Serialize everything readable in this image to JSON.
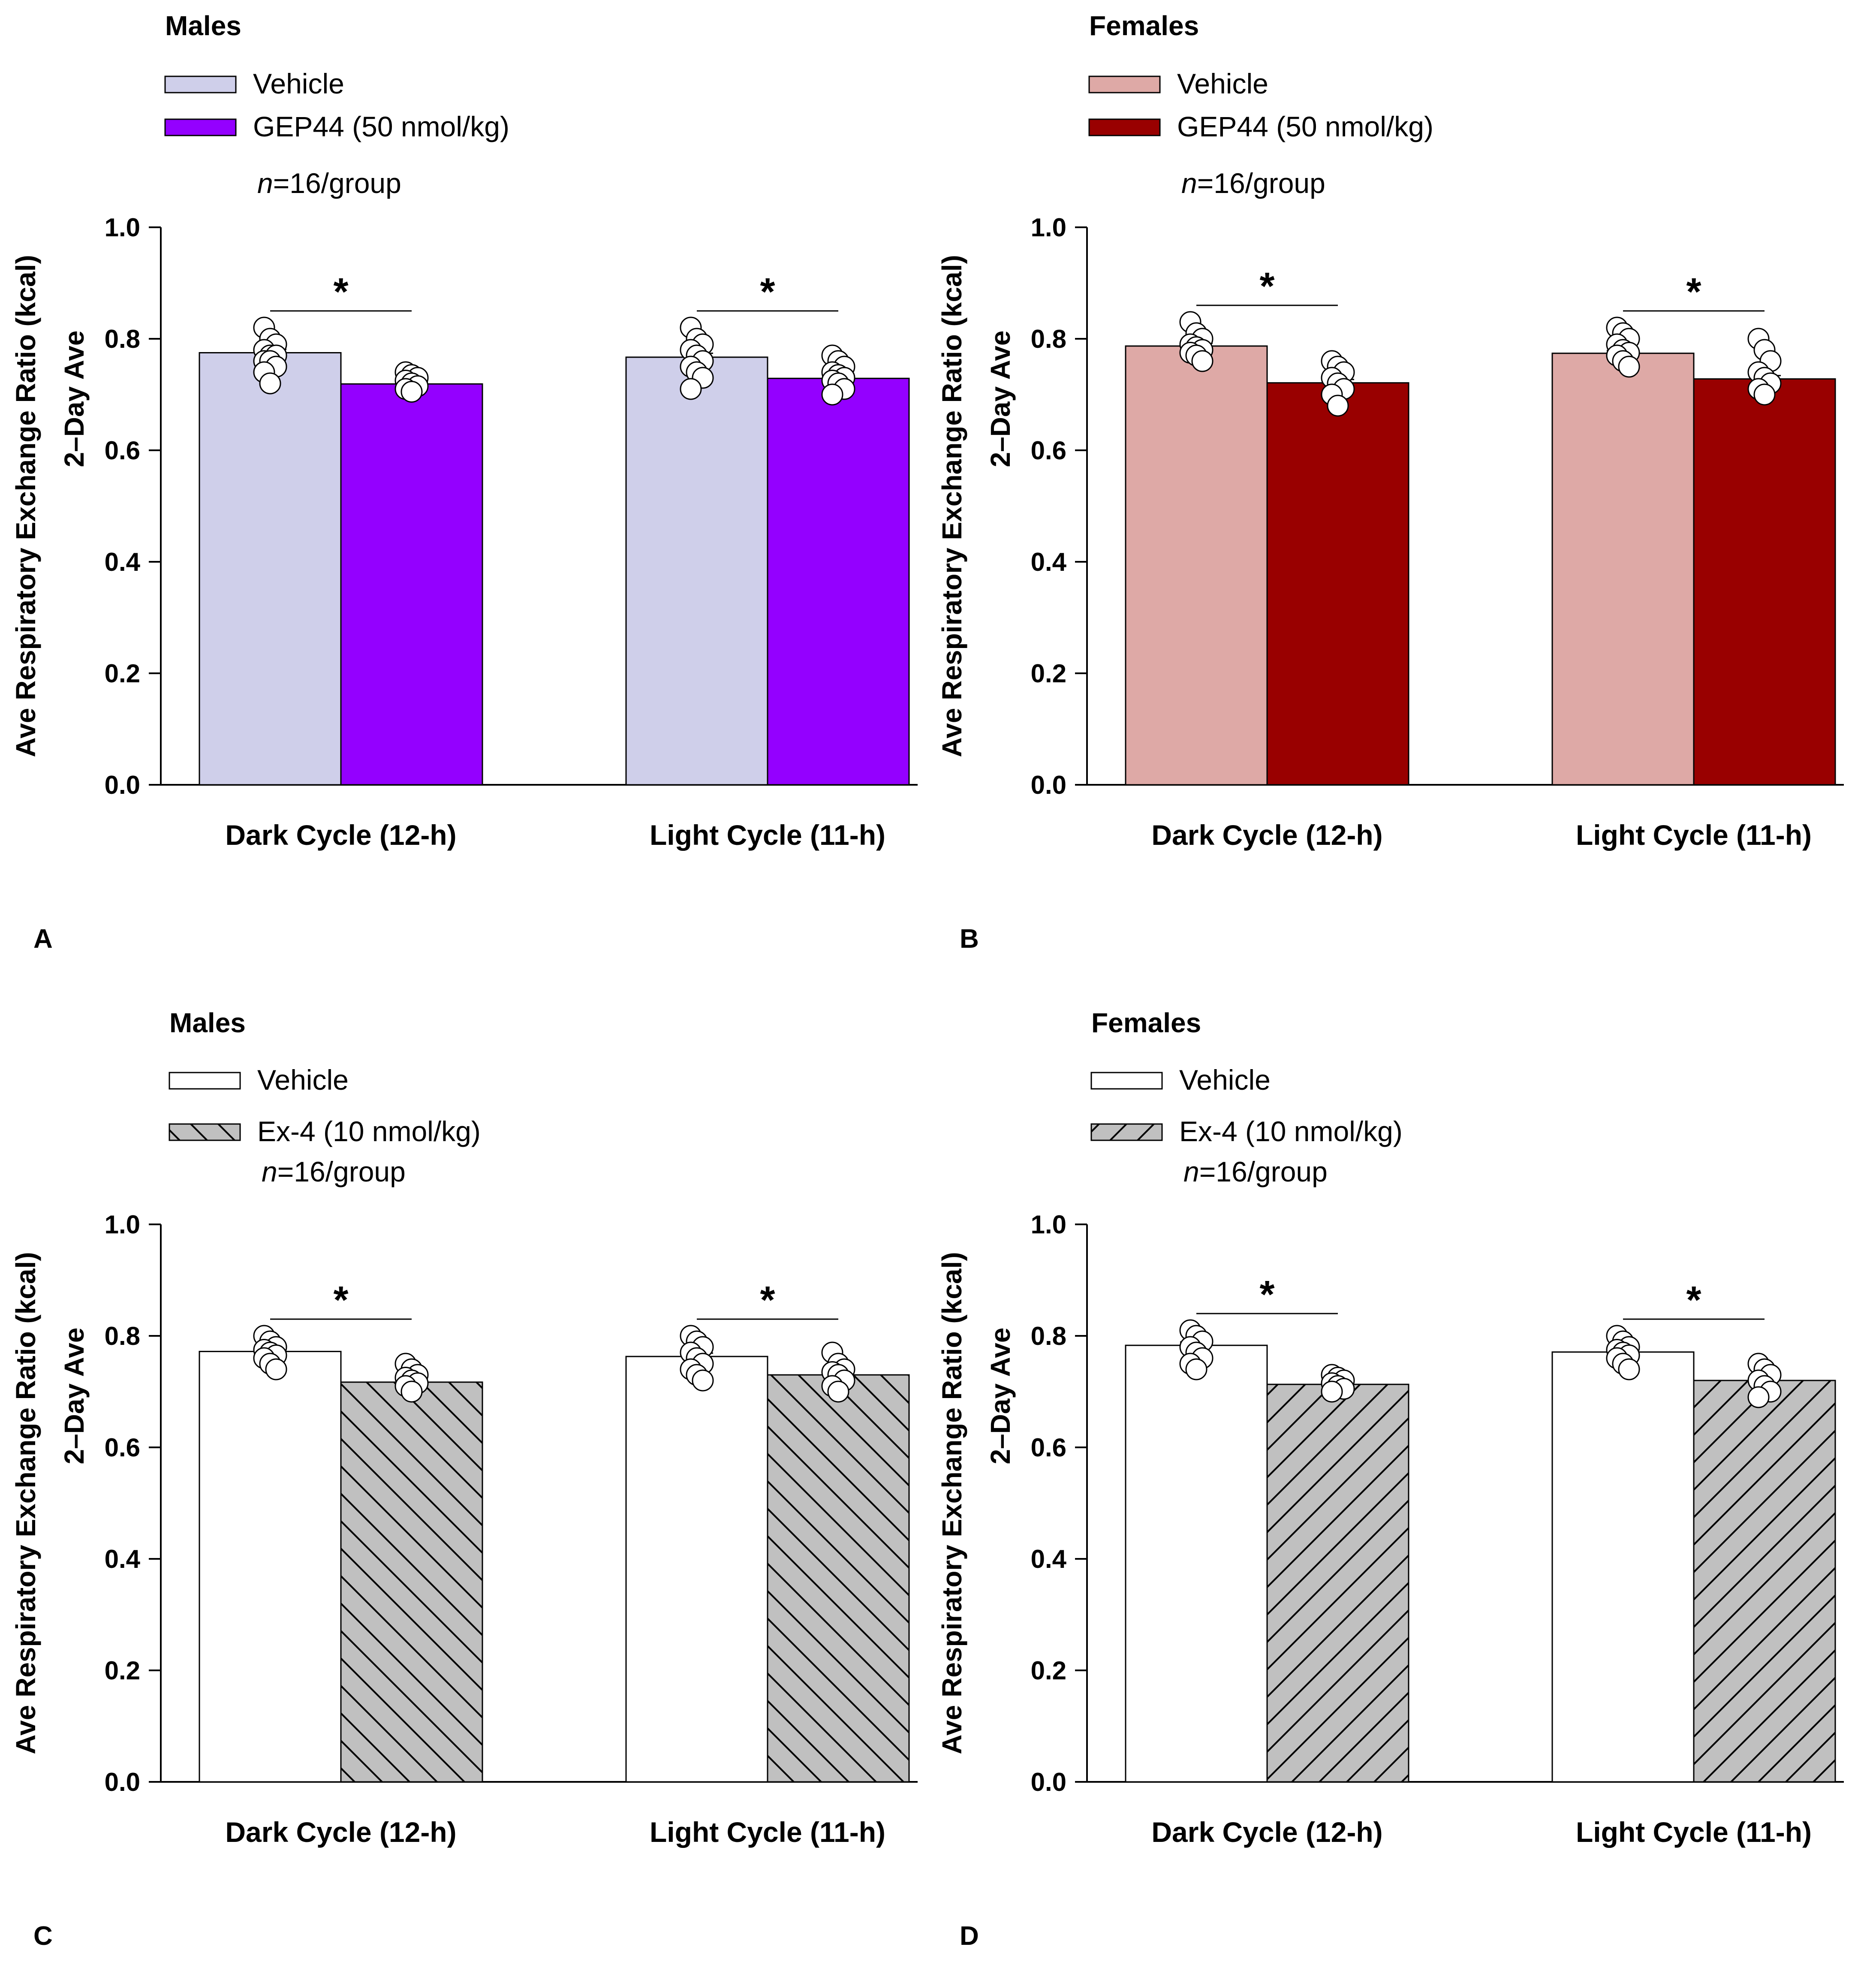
{
  "chart_data": [
    {
      "panel": "A",
      "type": "bar",
      "title": "Males",
      "ylabel": "Ave Respiratory Exchange Ratio (kcal)",
      "ylabel2": "2–Day Ave",
      "ylim": [
        0,
        1.0
      ],
      "yticks": [
        "0.0",
        "0.2",
        "0.4",
        "0.6",
        "0.8",
        "1.0"
      ],
      "n_label": {
        "italic": "n",
        "rest": "=16/group"
      },
      "categories": [
        "Dark Cycle (12-h)",
        "Light Cycle (11-h)"
      ],
      "series": [
        {
          "name": "Vehicle",
          "fill": "#cfcfea",
          "pattern": "none",
          "values": [
            0.775,
            0.767
          ],
          "sem": [
            0.006,
            0.007
          ]
        },
        {
          "name": "GEP44 (50 nmol/kg)",
          "fill": "#9400ff",
          "pattern": "none",
          "values": [
            0.719,
            0.729
          ],
          "sem": [
            0.003,
            0.004
          ]
        }
      ],
      "points": [
        [
          [
            0.82,
            0.8,
            0.79,
            0.78,
            0.77,
            0.77,
            0.76,
            0.76,
            0.75,
            0.74,
            0.72
          ],
          [
            0.74,
            0.735,
            0.73,
            0.725,
            0.72,
            0.715,
            0.71,
            0.705
          ]
        ],
        [
          [
            0.82,
            0.8,
            0.79,
            0.78,
            0.77,
            0.76,
            0.75,
            0.74,
            0.73,
            0.71
          ],
          [
            0.77,
            0.76,
            0.75,
            0.74,
            0.735,
            0.73,
            0.725,
            0.72,
            0.71,
            0.7
          ]
        ]
      ],
      "significance": [
        "*",
        "*"
      ]
    },
    {
      "panel": "B",
      "type": "bar",
      "title": "Females",
      "ylabel": "Ave Respiratory Exchange Ratio (kcal)",
      "ylabel2": "2–Day Ave",
      "ylim": [
        0,
        1.0
      ],
      "yticks": [
        "0.0",
        "0.2",
        "0.4",
        "0.6",
        "0.8",
        "1.0"
      ],
      "n_label": {
        "italic": "n",
        "rest": "=16/group"
      },
      "categories": [
        "Dark Cycle (12-h)",
        "Light Cycle (11-h)"
      ],
      "series": [
        {
          "name": "Vehicle",
          "fill": "#dea9a6",
          "pattern": "none",
          "values": [
            0.787,
            0.774
          ],
          "sem": [
            0.005,
            0.005
          ]
        },
        {
          "name": "GEP44 (50 nmol/kg)",
          "fill": "#990000",
          "pattern": "none",
          "values": [
            0.721,
            0.728
          ],
          "sem": [
            0.006,
            0.006
          ]
        }
      ],
      "points": [
        [
          [
            0.83,
            0.81,
            0.8,
            0.79,
            0.785,
            0.78,
            0.775,
            0.77,
            0.76
          ],
          [
            0.76,
            0.75,
            0.74,
            0.73,
            0.72,
            0.71,
            0.7,
            0.68
          ]
        ],
        [
          [
            0.82,
            0.81,
            0.8,
            0.79,
            0.78,
            0.775,
            0.77,
            0.76,
            0.75
          ],
          [
            0.8,
            0.78,
            0.76,
            0.74,
            0.73,
            0.72,
            0.71,
            0.7
          ]
        ]
      ],
      "significance": [
        "*",
        "*"
      ]
    },
    {
      "panel": "C",
      "type": "bar",
      "title": "Males",
      "ylabel": "Ave Respiratory Exchange Ratio (kcal)",
      "ylabel2": "2–Day Ave",
      "ylim": [
        0,
        1.0
      ],
      "yticks": [
        "0.0",
        "0.2",
        "0.4",
        "0.6",
        "0.8",
        "1.0"
      ],
      "n_label": {
        "italic": "n",
        "rest": "=16/group"
      },
      "categories": [
        "Dark Cycle (12-h)",
        "Light Cycle (11-h)"
      ],
      "series": [
        {
          "name": "Vehicle",
          "fill": "#ffffff",
          "pattern": "none",
          "values": [
            0.772,
            0.763
          ],
          "sem": [
            0.005,
            0.006
          ]
        },
        {
          "name": "Ex-4 (10 nmol/kg)",
          "fill": "#c0c0c0",
          "pattern": "back",
          "values": [
            0.717,
            0.73
          ],
          "sem": [
            0.004,
            0.004
          ]
        }
      ],
      "points": [
        [
          [
            0.8,
            0.79,
            0.78,
            0.775,
            0.77,
            0.765,
            0.76,
            0.75,
            0.74
          ],
          [
            0.75,
            0.74,
            0.73,
            0.725,
            0.72,
            0.715,
            0.71,
            0.7
          ]
        ],
        [
          [
            0.8,
            0.79,
            0.78,
            0.77,
            0.76,
            0.75,
            0.74,
            0.73,
            0.72
          ],
          [
            0.77,
            0.75,
            0.74,
            0.735,
            0.73,
            0.72,
            0.71,
            0.7
          ]
        ]
      ],
      "significance": [
        "*",
        "*"
      ]
    },
    {
      "panel": "D",
      "type": "bar",
      "title": "Females",
      "ylabel": "Ave Respiratory Exchange Ratio (kcal)",
      "ylabel2": "2–Day Ave",
      "ylim": [
        0,
        1.0
      ],
      "yticks": [
        "0.0",
        "0.2",
        "0.4",
        "0.6",
        "0.8",
        "1.0"
      ],
      "n_label": {
        "italic": "n",
        "rest": "=16/group"
      },
      "categories": [
        "Dark Cycle (12-h)",
        "Light Cycle (11-h)"
      ],
      "series": [
        {
          "name": "Vehicle",
          "fill": "#ffffff",
          "pattern": "none",
          "values": [
            0.783,
            0.771
          ],
          "sem": [
            0.006,
            0.005
          ]
        },
        {
          "name": "Ex-4 (10 nmol/kg)",
          "fill": "#c0c0c0",
          "pattern": "fwd",
          "values": [
            0.713,
            0.72
          ],
          "sem": [
            0.004,
            0.005
          ]
        }
      ],
      "points": [
        [
          [
            0.81,
            0.8,
            0.79,
            0.78,
            0.77,
            0.76,
            0.75,
            0.74
          ],
          [
            0.73,
            0.725,
            0.72,
            0.715,
            0.71,
            0.705,
            0.7
          ]
        ],
        [
          [
            0.8,
            0.79,
            0.78,
            0.775,
            0.77,
            0.765,
            0.76,
            0.75,
            0.74
          ],
          [
            0.75,
            0.74,
            0.73,
            0.72,
            0.71,
            0.7,
            0.69
          ]
        ]
      ],
      "significance": [
        "*",
        "*"
      ]
    }
  ]
}
